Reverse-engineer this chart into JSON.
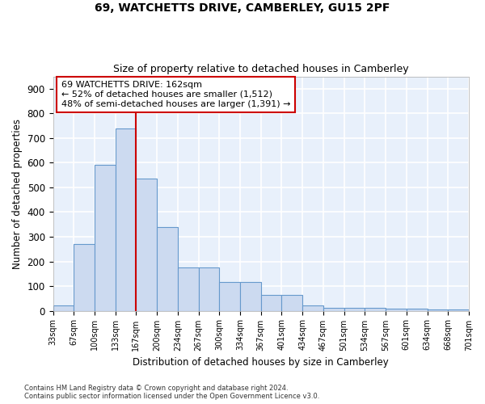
{
  "title": "69, WATCHETTS DRIVE, CAMBERLEY, GU15 2PF",
  "subtitle": "Size of property relative to detached houses in Camberley",
  "xlabel": "Distribution of detached houses by size in Camberley",
  "ylabel": "Number of detached properties",
  "categories": [
    "33sqm",
    "67sqm",
    "100sqm",
    "133sqm",
    "167sqm",
    "200sqm",
    "234sqm",
    "267sqm",
    "300sqm",
    "334sqm",
    "367sqm",
    "401sqm",
    "434sqm",
    "467sqm",
    "501sqm",
    "534sqm",
    "567sqm",
    "601sqm",
    "634sqm",
    "668sqm",
    "701sqm"
  ],
  "values": [
    20,
    270,
    590,
    740,
    535,
    340,
    175,
    175,
    118,
    118,
    65,
    65,
    20,
    12,
    12,
    12,
    10,
    10,
    5,
    5
  ],
  "bar_color": "#ccdaf0",
  "bar_edge_color": "#6699cc",
  "vline_color": "#cc0000",
  "annotation_text": "69 WATCHETTS DRIVE: 162sqm\n← 52% of detached houses are smaller (1,512)\n48% of semi-detached houses are larger (1,391) →",
  "annotation_box_color": "#ffffff",
  "annotation_box_edge": "#cc0000",
  "ylim": [
    0,
    950
  ],
  "yticks": [
    0,
    100,
    200,
    300,
    400,
    500,
    600,
    700,
    800,
    900
  ],
  "footer": "Contains HM Land Registry data © Crown copyright and database right 2024.\nContains public sector information licensed under the Open Government Licence v3.0.",
  "bg_color": "#e8f0fb",
  "grid_color": "#ffffff"
}
